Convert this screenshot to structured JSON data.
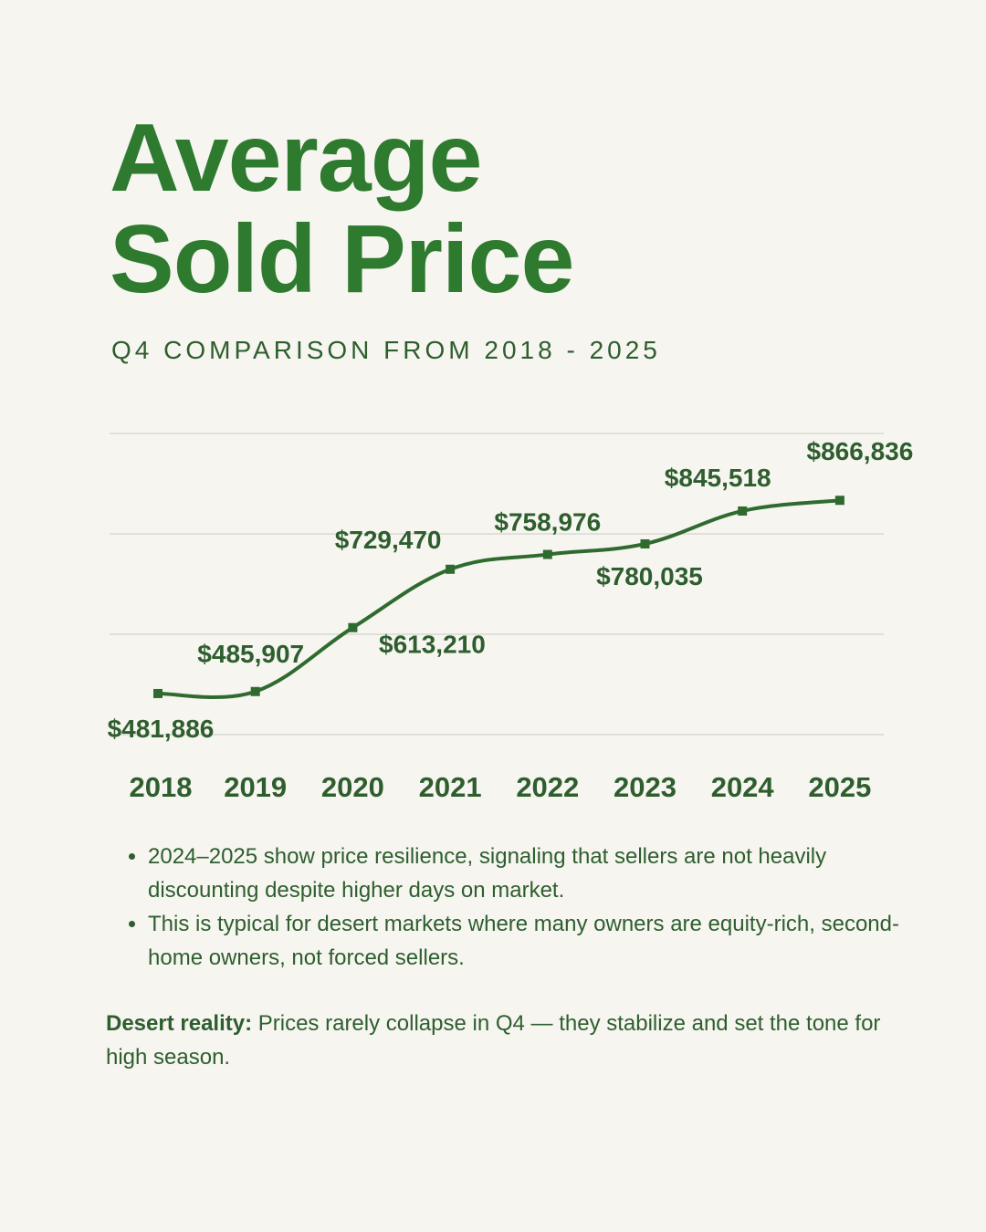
{
  "header": {
    "title_line1": "Average",
    "title_line2": "Sold Price",
    "subtitle": "Q4 COMPARISON FROM 2018 - 2025"
  },
  "colors": {
    "background": "#f6f5f0",
    "title": "#2e7a2e",
    "text": "#2e5e2e",
    "line": "#2f6b2f",
    "grid": "#d9d9d4"
  },
  "chart_data": {
    "type": "line",
    "title": "Average Sold Price",
    "subtitle": "Q4 COMPARISON FROM 2018 - 2025",
    "categories": [
      "2018",
      "2019",
      "2020",
      "2021",
      "2022",
      "2023",
      "2024",
      "2025"
    ],
    "values": [
      481886,
      485907,
      613210,
      729470,
      758976,
      780035,
      845518,
      866836
    ],
    "labels": [
      "$481,886",
      "$485,907",
      "$613,210",
      "$729,470",
      "$758,976",
      "$780,035",
      "$845,518",
      "$866,836"
    ],
    "ylim": [
      400000,
      1000000
    ],
    "grid": true,
    "xlabel": "",
    "ylabel": ""
  },
  "bullets": [
    "2024–2025 show price resilience, signaling that sellers are not heavily discounting despite higher days on market.",
    "This is typical for desert markets where many owners are equity-rich, second-home owners, not forced sellers."
  ],
  "note": {
    "bold": "Desert reality:",
    "text": "Prices rarely collapse in Q4 — they stabilize and set the tone for high season."
  }
}
